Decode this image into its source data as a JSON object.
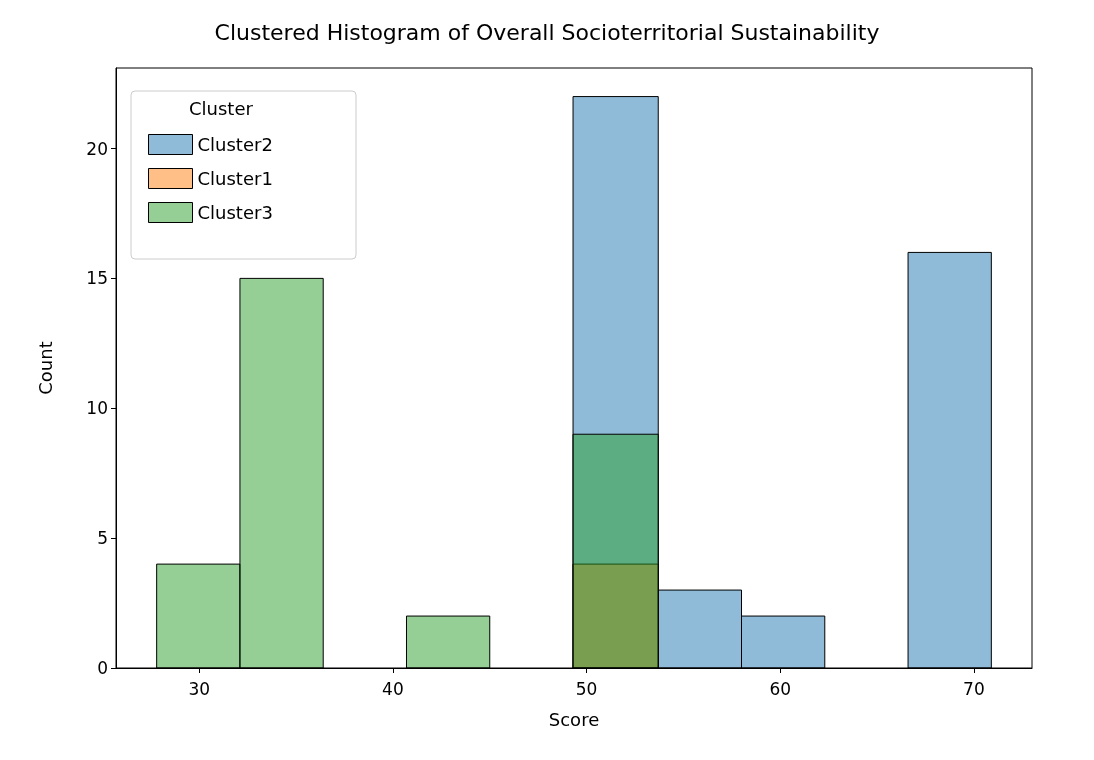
{
  "chart_data": {
    "type": "histogram",
    "title": "Clustered Histogram of Overall Socioterritorial Sustainability",
    "xlabel": "Score",
    "ylabel": "Count",
    "legend_title": "Cluster",
    "legend": "top left",
    "grid": false,
    "bins": [
      27.8,
      32.1,
      36.4,
      40.7,
      45.0,
      49.3,
      53.7,
      58.0,
      62.3,
      66.6,
      70.9
    ],
    "series": [
      {
        "name": "Cluster2",
        "color": "#1f77b4",
        "values": [
          0,
          0,
          0,
          0,
          0,
          22,
          3,
          2,
          0,
          16
        ]
      },
      {
        "name": "Cluster1",
        "color": "#ff7f0e",
        "values": [
          0,
          0,
          0,
          0,
          0,
          4,
          0,
          0,
          0,
          0
        ]
      },
      {
        "name": "Cluster3",
        "color": "#2ca02c",
        "values": [
          4,
          15,
          0,
          2,
          0,
          9,
          0,
          0,
          0,
          0
        ]
      }
    ],
    "xlim": [
      25.7,
      73.0
    ],
    "xticks": [
      30,
      40,
      50,
      60,
      70
    ],
    "ylim": [
      0,
      23.1
    ],
    "yticks": [
      0,
      5,
      10,
      15,
      20
    ]
  }
}
